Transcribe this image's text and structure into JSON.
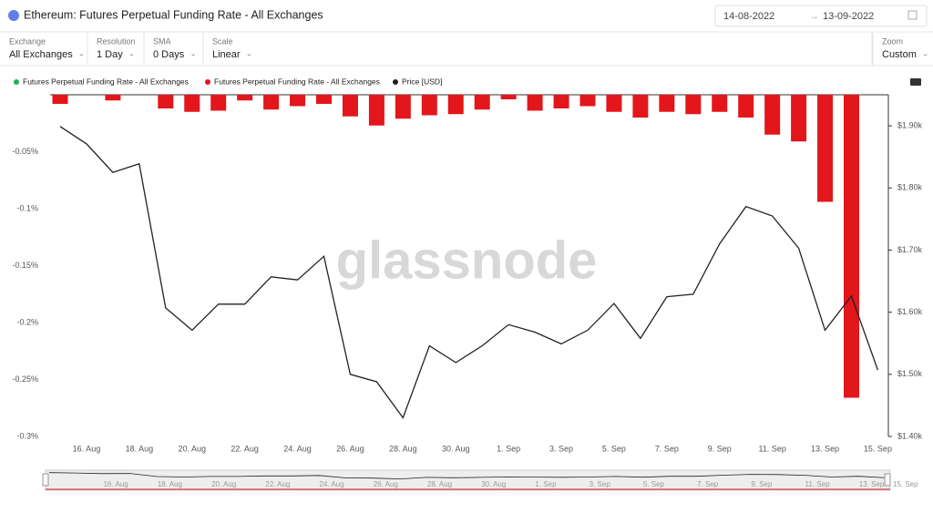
{
  "header": {
    "title": "Ethereum: Futures Perpetual Funding Rate - All Exchanges",
    "date_from": "14-08-2022",
    "date_to": "13-09-2022"
  },
  "controls": [
    {
      "label": "Exchange",
      "value": "All Exchanges"
    },
    {
      "label": "Resolution",
      "value": "1 Day"
    },
    {
      "label": "SMA",
      "value": "0 Days"
    },
    {
      "label": "Scale",
      "value": "Linear"
    },
    {
      "label": "Zoom",
      "value": "Custom"
    }
  ],
  "chart_data": {
    "type": "bar-line",
    "watermark": "glassnode",
    "categories": [
      null,
      "16. Aug",
      null,
      "18. Aug",
      null,
      "20. Aug",
      null,
      "22. Aug",
      null,
      "24. Aug",
      null,
      "26. Aug",
      null,
      "28. Aug",
      null,
      "30. Aug",
      null,
      "1. Sep",
      null,
      "3. Sep",
      null,
      "5. Sep",
      null,
      "7. Sep",
      null,
      "9. Sep",
      null,
      "11. Sep",
      null,
      "13. Sep",
      null,
      "15. Sep"
    ],
    "series": [
      {
        "name": "Futures Perpetual Funding Rate - All Exchanges",
        "color": "#1fad5b",
        "values": [
          null,
          null,
          null,
          null,
          null,
          null,
          null,
          null,
          null,
          null,
          null,
          null,
          null,
          null,
          null,
          null,
          null,
          null,
          null,
          null,
          null,
          null,
          null,
          null,
          null,
          null,
          null,
          null,
          null,
          null,
          null,
          null
        ]
      },
      {
        "name": "Futures Perpetual Funding Rate - All Exchanges",
        "color": "#e3161c",
        "values": [
          -0.008,
          0,
          -0.005,
          0,
          -0.012,
          -0.015,
          -0.014,
          -0.005,
          -0.013,
          -0.01,
          -0.008,
          -0.019,
          -0.027,
          -0.021,
          -0.018,
          -0.017,
          -0.013,
          -0.004,
          -0.014,
          -0.012,
          -0.01,
          -0.015,
          -0.02,
          -0.015,
          -0.017,
          -0.015,
          -0.02,
          -0.035,
          -0.041,
          -0.094,
          -0.266,
          null
        ]
      },
      {
        "name": "Price [USD]",
        "color": "#222222",
        "axis": "y2",
        "values": [
          1899,
          1871,
          1825,
          1839,
          1607,
          1571,
          1613,
          1613,
          1657,
          1652,
          1690,
          1500,
          1488,
          1430,
          1546,
          1519,
          1546,
          1580,
          1568,
          1549,
          1571,
          1614,
          1558,
          1625,
          1629,
          1710,
          1770,
          1755,
          1703,
          1571,
          1626,
          1507
        ]
      }
    ],
    "ylim": [
      -0.3,
      0
    ],
    "yticks": [
      {
        "value": -0.05,
        "label": "-0.05%"
      },
      {
        "value": -0.1,
        "label": "-0.1%"
      },
      {
        "value": -0.15,
        "label": "-0.15%"
      },
      {
        "value": -0.2,
        "label": "-0.2%"
      },
      {
        "value": -0.25,
        "label": "-0.25%"
      },
      {
        "value": -0.3,
        "label": "-0.3%"
      }
    ],
    "y2lim": [
      1400,
      1950
    ],
    "y2ticks": [
      {
        "value": 1400,
        "label": "$1.40k"
      },
      {
        "value": 1500,
        "label": "$1.50k"
      },
      {
        "value": 1600,
        "label": "$1.60k"
      },
      {
        "value": 1700,
        "label": "$1.70k"
      },
      {
        "value": 1800,
        "label": "$1.80k"
      },
      {
        "value": 1900,
        "label": "$1.90k"
      }
    ]
  }
}
